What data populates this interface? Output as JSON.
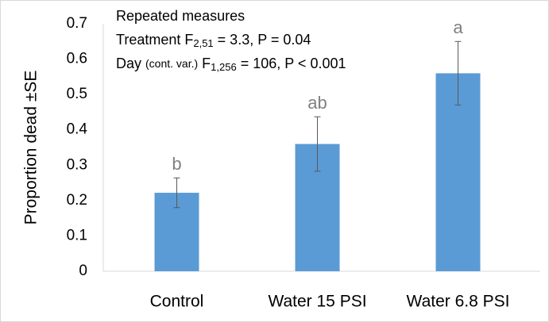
{
  "chart_data": {
    "type": "bar",
    "ylabel": "Proportion dead ±SE",
    "categories": [
      "Control",
      "Water 15 PSI",
      "Water 6.8 PSI"
    ],
    "values": [
      0.222,
      0.36,
      0.56
    ],
    "errors": [
      0.042,
      0.077,
      0.09
    ],
    "letters": [
      "b",
      "ab",
      "a"
    ],
    "color": "#5b9bd5",
    "ylim": [
      0,
      0.7
    ],
    "yticks": [
      0,
      0.1,
      0.2,
      0.3,
      0.4,
      0.5,
      0.6,
      0.7
    ],
    "grid": false,
    "annotations": [
      [
        {
          "text": "Repeated measures"
        }
      ],
      [
        {
          "text": "Treatment F"
        },
        {
          "text": "2,51",
          "sub": true
        },
        {
          "text": " = 3.3, P = 0.04"
        }
      ],
      [
        {
          "text": "Day "
        },
        {
          "text": "(cont. var.)",
          "small": true
        },
        {
          "text": " F"
        },
        {
          "text": "1,256",
          "sub": true
        },
        {
          "text": " = 106, P < 0.001"
        }
      ]
    ]
  }
}
